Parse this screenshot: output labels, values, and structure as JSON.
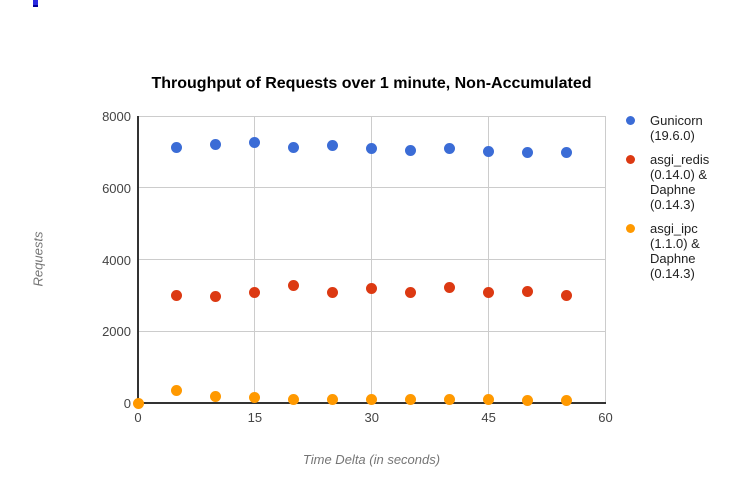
{
  "artifact_note": "tiny-blue-mark-top-left",
  "chart_data": {
    "type": "scatter",
    "title": "Throughput of Requests over 1 minute, Non-Accumulated",
    "xlabel": "Time Delta (in seconds)",
    "ylabel": "Requests",
    "xlim": [
      0,
      60
    ],
    "ylim": [
      0,
      8000
    ],
    "x_ticks": [
      0,
      15,
      30,
      45,
      60
    ],
    "y_ticks": [
      0,
      2000,
      4000,
      6000,
      8000
    ],
    "grid": true,
    "legend_position": "right",
    "series": [
      {
        "name": "Gunicorn (19.6.0)",
        "color": "#3B6CD6",
        "x": [
          5,
          10,
          15,
          20,
          25,
          30,
          35,
          40,
          45,
          50,
          55
        ],
        "y": [
          7110,
          7215,
          7250,
          7130,
          7170,
          7105,
          7040,
          7105,
          7000,
          6975,
          6985
        ]
      },
      {
        "name": "asgi_redis (0.14.0) & Daphne (0.14.3)",
        "color": "#DC3912",
        "x": [
          5,
          10,
          15,
          20,
          25,
          30,
          35,
          40,
          45,
          50,
          55
        ],
        "y": [
          3000,
          2975,
          3085,
          3275,
          3085,
          3200,
          3085,
          3210,
          3080,
          3095,
          2995
        ]
      },
      {
        "name": "asgi_ipc (1.1.0) & Daphne (0.14.3)",
        "color": "#FF9900",
        "x": [
          0,
          5,
          10,
          15,
          20,
          25,
          30,
          35,
          40,
          45,
          50,
          55
        ],
        "y": [
          0,
          360,
          180,
          140,
          95,
          95,
          95,
          85,
          95,
          85,
          70,
          65
        ]
      }
    ]
  }
}
